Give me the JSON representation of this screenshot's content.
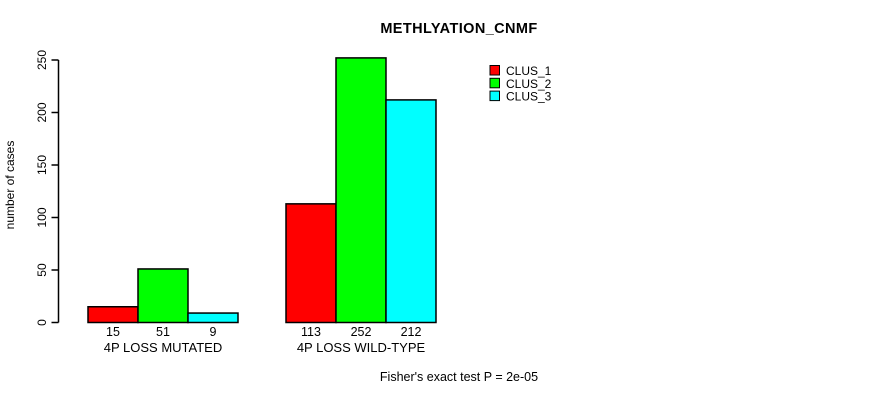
{
  "chart_data": {
    "type": "bar",
    "title": "METHLYATION_CNMF",
    "ylabel": "number of cases",
    "xlabel": "",
    "categories": [
      "4P LOSS MUTATED",
      "4P LOSS WILD-TYPE"
    ],
    "series": [
      {
        "name": "CLUS_1",
        "color": "#ff0000",
        "values": [
          15,
          113
        ]
      },
      {
        "name": "CLUS_2",
        "color": "#00ff00",
        "values": [
          51,
          252
        ]
      },
      {
        "name": "CLUS_3",
        "color": "#00ffff",
        "values": [
          9,
          212
        ]
      }
    ],
    "bar_value_labels": [
      [
        15,
        51,
        9
      ],
      [
        113,
        252,
        212
      ]
    ],
    "yticks": [
      0,
      50,
      100,
      150,
      200,
      250
    ],
    "ylim": [
      0,
      250
    ],
    "grid": false,
    "legend_position": "top-right",
    "bar_border_color": "#000000",
    "text_color": "#000000",
    "background_color": "#ffffff",
    "annotation": "Fisher's exact test P = 2e-05"
  }
}
